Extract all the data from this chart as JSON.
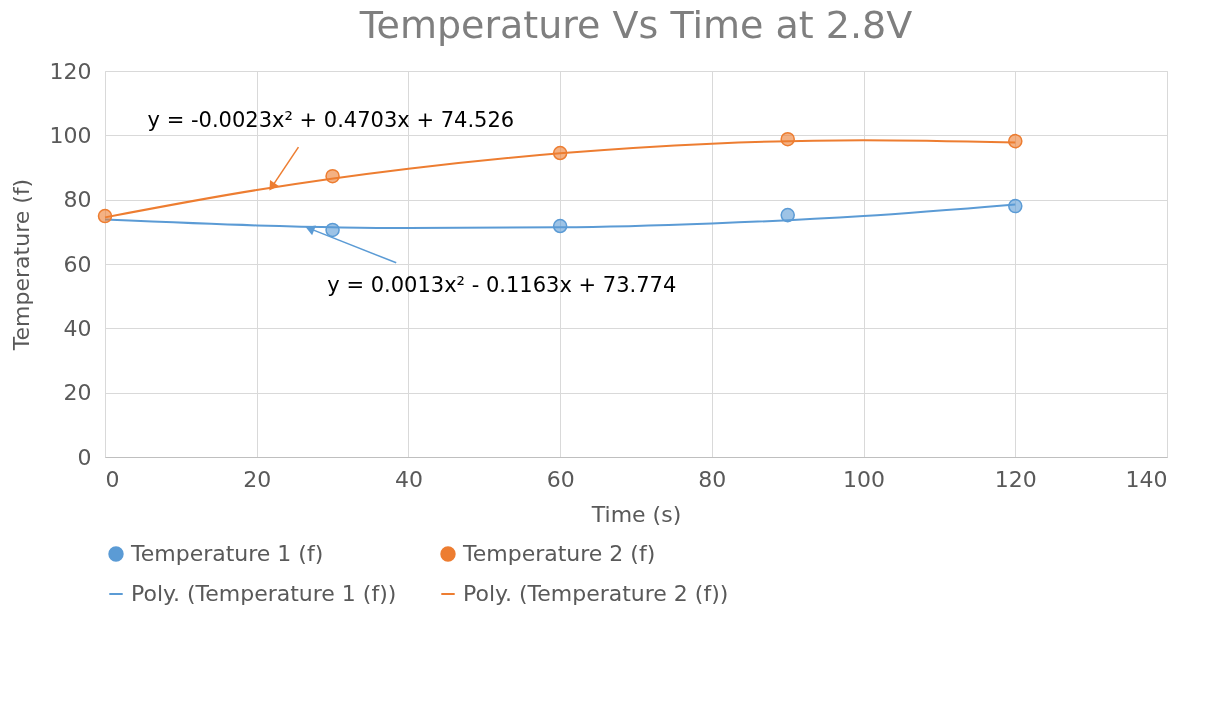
{
  "chart_data": {
    "type": "scatter",
    "title": "Temperature Vs Time at 2.8V",
    "xlabel": "Time (s)",
    "ylabel": "Temperature (f)",
    "xlim": [
      0,
      140
    ],
    "ylim": [
      0,
      120
    ],
    "xticks": [
      0,
      20,
      40,
      60,
      80,
      100,
      120,
      140
    ],
    "yticks": [
      0,
      20,
      40,
      60,
      80,
      100,
      120
    ],
    "grid": true,
    "legend": "bottom",
    "marker": "circle",
    "series": [
      {
        "name": "Temperature 1 (f)",
        "color": "#5b9bd5",
        "x": [
          30,
          60,
          90,
          120
        ],
        "values": [
          70.6,
          71.8,
          75.2,
          78.0
        ]
      },
      {
        "name": "Temperature 2 (f)",
        "color": "#ed7d31",
        "x": [
          0,
          30,
          60,
          90,
          120
        ],
        "values": [
          74.9,
          87.3,
          94.5,
          98.8,
          98.2
        ]
      },
      {
        "name": "Poly. (Temperature 1 (f))",
        "type": "line",
        "line_style": "solid",
        "marker": "none",
        "color": "#5b9bd5",
        "x": [
          0,
          20,
          40,
          60,
          80,
          100,
          120
        ],
        "values": [
          73.8,
          72.0,
          71.2,
          71.4,
          72.6,
          74.9,
          78.5
        ]
      },
      {
        "name": "Poly. (Temperature 2 (f))",
        "type": "line",
        "line_style": "solid",
        "marker": "none",
        "color": "#ed7d31",
        "x": [
          0,
          20,
          40,
          60,
          80,
          100,
          120
        ],
        "values": [
          74.5,
          83.0,
          89.6,
          94.4,
          97.4,
          98.5,
          97.8
        ]
      }
    ],
    "annotations": [
      {
        "text": "y = -0.0023x² + 0.4703x + 74.526",
        "x": 22,
        "y": 84
      },
      {
        "text": "y = 0.0013x² - 0.1163x + 73.774",
        "x": 27,
        "y": 71
      }
    ]
  }
}
